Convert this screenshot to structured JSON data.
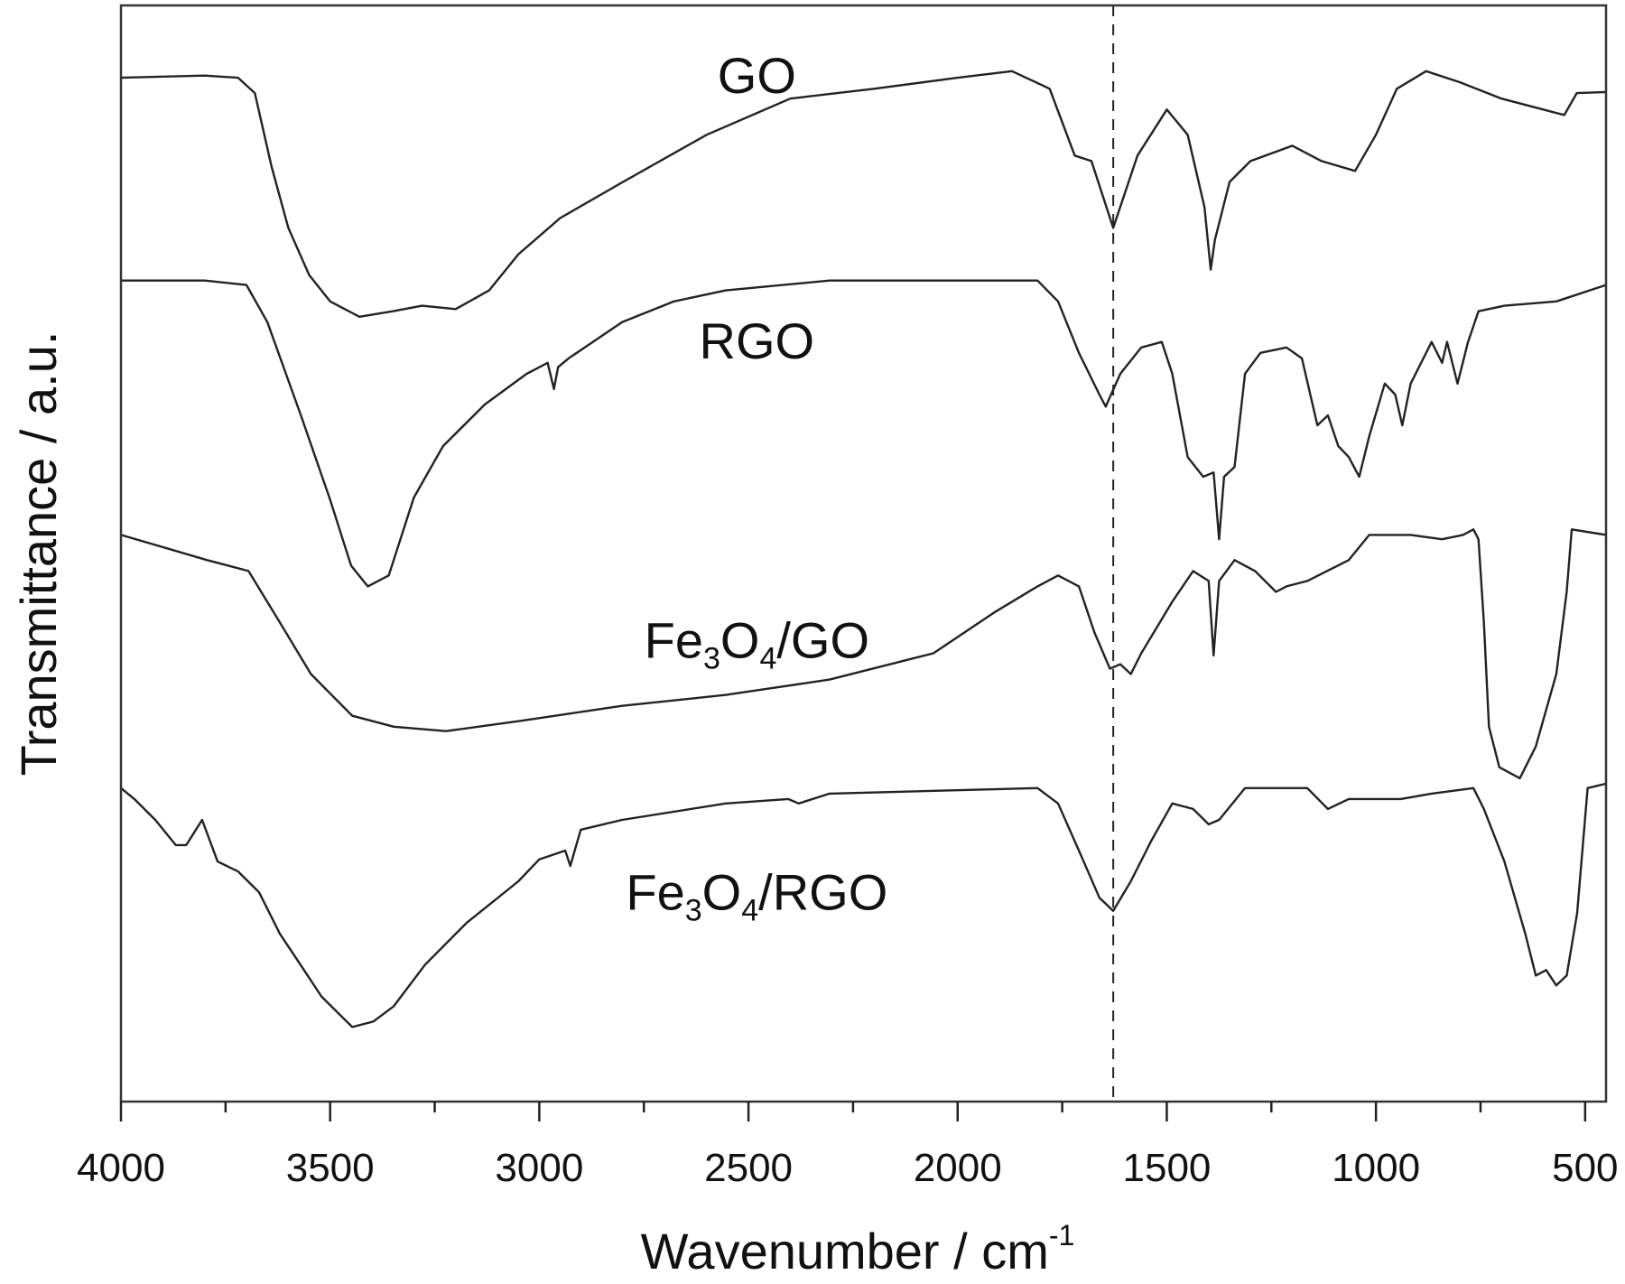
{
  "chart_data": {
    "type": "line",
    "title": "",
    "xlabel": "Wavenumber / cm",
    "xlabel_sup": "-1",
    "ylabel": "Transmittance / a.u.",
    "xlim": [
      4000,
      450
    ],
    "ylim": [
      0,
      100
    ],
    "x_reversed": true,
    "xticks": [
      4000,
      3500,
      3000,
      2500,
      2000,
      1500,
      1000,
      500
    ],
    "x_minor_ticks": [
      3750,
      3250,
      2750,
      2250,
      1750,
      1250,
      750
    ],
    "yticks": [],
    "grid": false,
    "legend": "none (inline labels)",
    "reference_line": {
      "x": 1628,
      "style": "dashed"
    },
    "series": [
      {
        "name": "GO",
        "label_parts": [
          [
            "GO",
            false
          ]
        ],
        "label_at": [
          2480,
          92
        ],
        "points": [
          [
            4000,
            93.4
          ],
          [
            3800,
            93.6
          ],
          [
            3720,
            93.4
          ],
          [
            3680,
            92.0
          ],
          [
            3640,
            85.3
          ],
          [
            3600,
            79.7
          ],
          [
            3550,
            75.4
          ],
          [
            3500,
            73.0
          ],
          [
            3430,
            71.6
          ],
          [
            3350,
            72.1
          ],
          [
            3280,
            72.6
          ],
          [
            3200,
            72.3
          ],
          [
            3120,
            74.0
          ],
          [
            3050,
            77.3
          ],
          [
            2950,
            80.6
          ],
          [
            2800,
            83.9
          ],
          [
            2600,
            88.2
          ],
          [
            2400,
            91.5
          ],
          [
            2200,
            92.4
          ],
          [
            2000,
            93.4
          ],
          [
            1870,
            94.0
          ],
          [
            1780,
            92.4
          ],
          [
            1720,
            86.3
          ],
          [
            1680,
            85.8
          ],
          [
            1628,
            79.7
          ],
          [
            1570,
            86.3
          ],
          [
            1500,
            90.5
          ],
          [
            1450,
            88.2
          ],
          [
            1410,
            81.6
          ],
          [
            1395,
            75.9
          ],
          [
            1385,
            78.6
          ],
          [
            1350,
            83.9
          ],
          [
            1300,
            85.8
          ],
          [
            1200,
            87.2
          ],
          [
            1130,
            85.8
          ],
          [
            1050,
            84.9
          ],
          [
            1000,
            88.2
          ],
          [
            950,
            92.4
          ],
          [
            880,
            94.0
          ],
          [
            800,
            93.0
          ],
          [
            700,
            91.5
          ],
          [
            600,
            90.5
          ],
          [
            550,
            90.0
          ],
          [
            520,
            92.0
          ],
          [
            450,
            92.1
          ]
        ]
      },
      {
        "name": "RGO",
        "label_parts": [
          [
            "RGO",
            false
          ]
        ],
        "label_at": [
          2480,
          67.8
        ],
        "points": [
          [
            4000,
            74.9
          ],
          [
            3800,
            74.9
          ],
          [
            3700,
            74.5
          ],
          [
            3650,
            71.1
          ],
          [
            3570,
            62.6
          ],
          [
            3500,
            54.9
          ],
          [
            3450,
            48.9
          ],
          [
            3410,
            47.0
          ],
          [
            3360,
            48.0
          ],
          [
            3300,
            55.1
          ],
          [
            3230,
            59.8
          ],
          [
            3130,
            63.6
          ],
          [
            3030,
            66.4
          ],
          [
            2980,
            67.4
          ],
          [
            2965,
            65.0
          ],
          [
            2955,
            67.0
          ],
          [
            2930,
            67.8
          ],
          [
            2802,
            71.1
          ],
          [
            2678,
            73.0
          ],
          [
            2554,
            74.0
          ],
          [
            2306,
            74.9
          ],
          [
            1809,
            74.9
          ],
          [
            1760,
            73.0
          ],
          [
            1710,
            68.3
          ],
          [
            1661,
            64.5
          ],
          [
            1646,
            63.4
          ],
          [
            1611,
            66.4
          ],
          [
            1561,
            68.8
          ],
          [
            1512,
            69.3
          ],
          [
            1487,
            66.4
          ],
          [
            1450,
            58.8
          ],
          [
            1413,
            57.0
          ],
          [
            1388,
            57.4
          ],
          [
            1375,
            51.3
          ],
          [
            1363,
            57.0
          ],
          [
            1338,
            57.9
          ],
          [
            1313,
            66.4
          ],
          [
            1276,
            68.3
          ],
          [
            1214,
            68.8
          ],
          [
            1177,
            67.8
          ],
          [
            1140,
            61.7
          ],
          [
            1115,
            62.6
          ],
          [
            1090,
            59.8
          ],
          [
            1065,
            58.8
          ],
          [
            1040,
            57.0
          ],
          [
            1016,
            60.7
          ],
          [
            979,
            65.5
          ],
          [
            954,
            64.5
          ],
          [
            937,
            61.7
          ],
          [
            917,
            65.5
          ],
          [
            867,
            69.3
          ],
          [
            842,
            67.4
          ],
          [
            830,
            69.3
          ],
          [
            805,
            65.5
          ],
          [
            780,
            69.3
          ],
          [
            755,
            72.1
          ],
          [
            693,
            72.6
          ],
          [
            569,
            73.0
          ],
          [
            450,
            74.5
          ]
        ]
      },
      {
        "name": "Fe3O4/GO",
        "label_parts": [
          [
            "Fe",
            false
          ],
          [
            "3",
            true
          ],
          [
            "O",
            false
          ],
          [
            "4",
            true
          ],
          [
            "/GO",
            false
          ]
        ],
        "label_at": [
          2480,
          40.5
        ],
        "points": [
          [
            4000,
            51.7
          ],
          [
            3794,
            49.4
          ],
          [
            3695,
            48.4
          ],
          [
            3620,
            43.7
          ],
          [
            3546,
            39.0
          ],
          [
            3447,
            35.2
          ],
          [
            3348,
            34.2
          ],
          [
            3223,
            33.8
          ],
          [
            3050,
            34.7
          ],
          [
            2802,
            36.1
          ],
          [
            2554,
            37.1
          ],
          [
            2306,
            38.5
          ],
          [
            2058,
            40.9
          ],
          [
            1909,
            44.7
          ],
          [
            1809,
            47.0
          ],
          [
            1760,
            48.0
          ],
          [
            1710,
            47.0
          ],
          [
            1673,
            42.8
          ],
          [
            1636,
            39.5
          ],
          [
            1611,
            39.9
          ],
          [
            1586,
            39.0
          ],
          [
            1561,
            40.9
          ],
          [
            1487,
            45.6
          ],
          [
            1437,
            48.4
          ],
          [
            1400,
            47.5
          ],
          [
            1388,
            40.7
          ],
          [
            1375,
            47.5
          ],
          [
            1338,
            49.4
          ],
          [
            1289,
            48.4
          ],
          [
            1239,
            46.5
          ],
          [
            1214,
            47.0
          ],
          [
            1164,
            47.5
          ],
          [
            1065,
            49.4
          ],
          [
            1016,
            51.7
          ],
          [
            917,
            51.7
          ],
          [
            842,
            51.3
          ],
          [
            792,
            51.7
          ],
          [
            767,
            52.2
          ],
          [
            755,
            51.3
          ],
          [
            742,
            43.7
          ],
          [
            730,
            34.2
          ],
          [
            705,
            30.5
          ],
          [
            656,
            29.5
          ],
          [
            618,
            32.4
          ],
          [
            569,
            39.0
          ],
          [
            544,
            46.5
          ],
          [
            532,
            52.2
          ],
          [
            450,
            51.7
          ]
        ]
      },
      {
        "name": "Fe3O4/RGO",
        "label_parts": [
          [
            "Fe",
            false
          ],
          [
            "3",
            true
          ],
          [
            "O",
            false
          ],
          [
            "4",
            true
          ],
          [
            "/RGO",
            false
          ]
        ],
        "label_at": [
          2480,
          17.5
        ],
        "points": [
          [
            4000,
            28.6
          ],
          [
            3968,
            27.6
          ],
          [
            3918,
            25.7
          ],
          [
            3869,
            23.4
          ],
          [
            3844,
            23.4
          ],
          [
            3806,
            25.7
          ],
          [
            3769,
            21.9
          ],
          [
            3720,
            21.0
          ],
          [
            3670,
            19.1
          ],
          [
            3620,
            15.3
          ],
          [
            3571,
            12.5
          ],
          [
            3521,
            9.6
          ],
          [
            3447,
            6.8
          ],
          [
            3397,
            7.3
          ],
          [
            3348,
            8.7
          ],
          [
            3273,
            12.5
          ],
          [
            3174,
            16.3
          ],
          [
            3050,
            20.1
          ],
          [
            3000,
            22.1
          ],
          [
            2938,
            22.9
          ],
          [
            2926,
            21.5
          ],
          [
            2901,
            24.8
          ],
          [
            2802,
            25.7
          ],
          [
            2554,
            27.2
          ],
          [
            2405,
            27.6
          ],
          [
            2380,
            27.2
          ],
          [
            2306,
            28.1
          ],
          [
            1809,
            28.6
          ],
          [
            1760,
            27.2
          ],
          [
            1710,
            22.9
          ],
          [
            1661,
            18.6
          ],
          [
            1628,
            17.4
          ],
          [
            1586,
            20.1
          ],
          [
            1537,
            23.8
          ],
          [
            1487,
            27.2
          ],
          [
            1437,
            26.7
          ],
          [
            1400,
            25.3
          ],
          [
            1375,
            25.7
          ],
          [
            1313,
            28.6
          ],
          [
            1164,
            28.6
          ],
          [
            1115,
            26.7
          ],
          [
            1065,
            27.6
          ],
          [
            941,
            27.6
          ],
          [
            867,
            28.1
          ],
          [
            767,
            28.6
          ],
          [
            742,
            26.7
          ],
          [
            693,
            21.9
          ],
          [
            643,
            15.3
          ],
          [
            618,
            11.5
          ],
          [
            593,
            12.0
          ],
          [
            569,
            10.6
          ],
          [
            544,
            11.5
          ],
          [
            519,
            17.2
          ],
          [
            494,
            28.6
          ],
          [
            450,
            29.0
          ]
        ]
      }
    ]
  }
}
